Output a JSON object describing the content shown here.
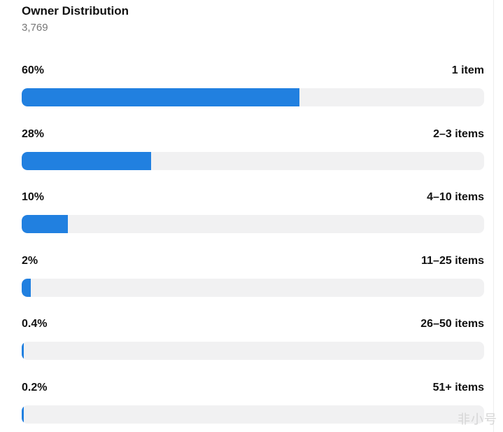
{
  "header": {
    "title": "Owner Distribution",
    "total": "3,769"
  },
  "chart_data": {
    "type": "bar",
    "orientation": "horizontal",
    "title": "Owner Distribution",
    "categories": [
      "1 item",
      "2–3 items",
      "4–10 items",
      "11–25 items",
      "26–50 items",
      "51+ items"
    ],
    "value_labels": [
      "60%",
      "28%",
      "10%",
      "2%",
      "0.4%",
      "0.2%"
    ],
    "values": [
      60,
      28,
      10,
      2,
      0.4,
      0.2
    ],
    "xlim": [
      0,
      100
    ],
    "grid": false,
    "bar_color": "#2180e0",
    "track_color": "#f1f1f2"
  },
  "watermark": "非小号"
}
